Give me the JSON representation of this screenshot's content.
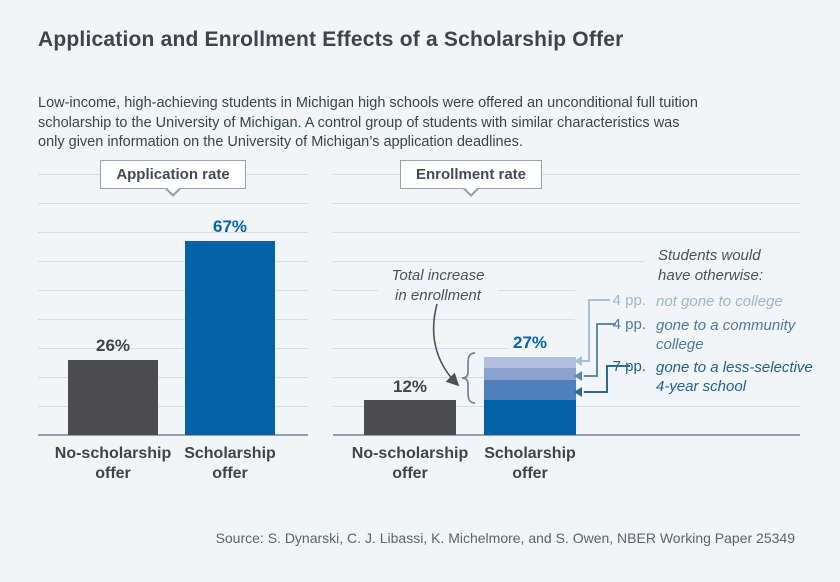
{
  "title": "Application and Enrollment Effects of a Scholarship Offer",
  "subtitle": "Low-income, high-achieving students in Michigan high schools were offered an unconditional full tuition\nscholarship to the University of Michigan. A control group of students with similar characteristics was\nonly given information on the University of Michigan’s application deadlines.",
  "source": "Source: S. Dynarski, C. J. Libassi, K. Michelmore, and S. Owen, NBER Working Paper 25349",
  "colors": {
    "background": "#f1f5f8",
    "accent_blue": "#0562a6",
    "neutral_bar_gray": "#4c4c4e",
    "stack_less_selective": "#5080bc",
    "stack_community_college": "#8aa2d0",
    "stack_not_gone": "#b2bfdd",
    "gridline": "#d6dde4",
    "baseline": "#96a0aa"
  },
  "chart_data": [
    {
      "type": "bar",
      "title": "Application rate",
      "categories": [
        "No-scholarship offer",
        "Scholarship offer"
      ],
      "category_labels": [
        "No-scholarship\noffer",
        "Scholarship\noffer"
      ],
      "values": [
        26,
        67
      ],
      "value_labels": [
        "26%",
        "67%"
      ],
      "unit": "percent",
      "ylim": [
        0,
        90
      ],
      "gridline_step": 10,
      "bar_colors": [
        "#4c4c4e",
        "#0562a6"
      ]
    },
    {
      "type": "stacked-bar",
      "title": "Enrollment rate",
      "categories": [
        "No-scholarship offer",
        "Scholarship offer"
      ],
      "category_labels": [
        "No-scholarship\noffer",
        "Scholarship\noffer"
      ],
      "values": [
        12,
        27
      ],
      "value_labels": [
        "12%",
        "27%"
      ],
      "unit": "percent",
      "ylim": [
        0,
        90
      ],
      "gridline_step": 10,
      "total_increase_pp": 15,
      "scholarship_segments": [
        {
          "label": "base",
          "value": 12,
          "color": "#0562a6"
        },
        {
          "label": "gone to a less-selective 4-year school",
          "value": 7,
          "color": "#5080bc"
        },
        {
          "label": "gone to a community college",
          "value": 4,
          "color": "#8aa2d0"
        },
        {
          "label": "not gone to college",
          "value": 4,
          "color": "#b2bfdd"
        }
      ],
      "annotations": {
        "total_increase": "Total increase\nin enrollment",
        "otherwise_heading": "Students would\nhave otherwise:",
        "items": [
          {
            "pp": "4 pp.",
            "text": "not gone to college",
            "color": "#9db5cb"
          },
          {
            "pp": "4 pp.",
            "text": "gone to a community\ncollege",
            "color": "#50789a"
          },
          {
            "pp": "7 pp.",
            "text": "gone to a less-selective\n4-year school",
            "color": "#1d618f"
          }
        ]
      }
    }
  ]
}
